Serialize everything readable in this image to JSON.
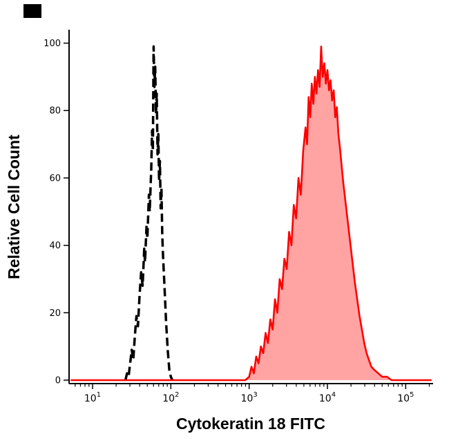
{
  "figure": {
    "background": "#ffffff",
    "corner_marker_color": "#000000"
  },
  "chart_data": {
    "type": "area",
    "title": "",
    "xlabel": "Cytokeratin 18 FITC",
    "ylabel": "Relative Cell Count",
    "x_scale": "log",
    "x_range_log10": [
      0.7,
      5.35
    ],
    "ylim": [
      0,
      104
    ],
    "y_ticks": [
      0,
      20,
      40,
      60,
      80,
      100
    ],
    "x_tick_base": "10",
    "x_tick_exponents": [
      1,
      2,
      3,
      4,
      5
    ],
    "grid": false,
    "legend": "none",
    "series": [
      {
        "name": "unstained-control-dashed-black",
        "style": "dashed",
        "color": "#000000",
        "fill": "none",
        "points_log10x_y": [
          [
            1.42,
            0
          ],
          [
            1.44,
            2
          ],
          [
            1.46,
            1
          ],
          [
            1.48,
            5
          ],
          [
            1.5,
            9
          ],
          [
            1.52,
            6
          ],
          [
            1.54,
            13
          ],
          [
            1.56,
            19
          ],
          [
            1.58,
            16
          ],
          [
            1.6,
            25
          ],
          [
            1.62,
            32
          ],
          [
            1.64,
            28
          ],
          [
            1.66,
            39
          ],
          [
            1.67,
            35
          ],
          [
            1.69,
            46
          ],
          [
            1.7,
            42
          ],
          [
            1.72,
            55
          ],
          [
            1.73,
            50
          ],
          [
            1.75,
            63
          ],
          [
            1.76,
            74
          ],
          [
            1.77,
            68
          ],
          [
            1.78,
            99
          ],
          [
            1.79,
            87
          ],
          [
            1.8,
            93
          ],
          [
            1.81,
            79
          ],
          [
            1.82,
            85
          ],
          [
            1.83,
            67
          ],
          [
            1.84,
            73
          ],
          [
            1.85,
            59
          ],
          [
            1.86,
            65
          ],
          [
            1.87,
            51
          ],
          [
            1.88,
            57
          ],
          [
            1.89,
            43
          ],
          [
            1.9,
            37
          ],
          [
            1.92,
            27
          ],
          [
            1.94,
            17
          ],
          [
            1.96,
            9
          ],
          [
            1.98,
            3
          ],
          [
            2.0,
            1
          ],
          [
            2.02,
            0
          ]
        ]
      },
      {
        "name": "cytokeratin-18-fitc-stained-red-filled",
        "style": "solid",
        "color": "#ff0000",
        "fill": "#ffa3a3",
        "points_log10x_y": [
          [
            0.72,
            0
          ],
          [
            1.5,
            0
          ],
          [
            2.3,
            0
          ],
          [
            2.8,
            0
          ],
          [
            2.95,
            0
          ],
          [
            3.0,
            1
          ],
          [
            3.03,
            4
          ],
          [
            3.06,
            2
          ],
          [
            3.09,
            7
          ],
          [
            3.12,
            5
          ],
          [
            3.15,
            10
          ],
          [
            3.18,
            8
          ],
          [
            3.21,
            14
          ],
          [
            3.24,
            11
          ],
          [
            3.27,
            18
          ],
          [
            3.3,
            15
          ],
          [
            3.33,
            24
          ],
          [
            3.36,
            20
          ],
          [
            3.39,
            30
          ],
          [
            3.42,
            27
          ],
          [
            3.45,
            36
          ],
          [
            3.48,
            33
          ],
          [
            3.51,
            44
          ],
          [
            3.54,
            40
          ],
          [
            3.57,
            52
          ],
          [
            3.6,
            48
          ],
          [
            3.63,
            60
          ],
          [
            3.66,
            55
          ],
          [
            3.69,
            68
          ],
          [
            3.72,
            75
          ],
          [
            3.74,
            70
          ],
          [
            3.76,
            84
          ],
          [
            3.78,
            78
          ],
          [
            3.8,
            88
          ],
          [
            3.82,
            82
          ],
          [
            3.84,
            90
          ],
          [
            3.86,
            85
          ],
          [
            3.88,
            92
          ],
          [
            3.9,
            87
          ],
          [
            3.92,
            99
          ],
          [
            3.94,
            90
          ],
          [
            3.96,
            94
          ],
          [
            3.98,
            88
          ],
          [
            4.0,
            92
          ],
          [
            4.02,
            86
          ],
          [
            4.04,
            89
          ],
          [
            4.06,
            83
          ],
          [
            4.08,
            86
          ],
          [
            4.1,
            78
          ],
          [
            4.12,
            81
          ],
          [
            4.14,
            73
          ],
          [
            4.16,
            69
          ],
          [
            4.18,
            64
          ],
          [
            4.2,
            59
          ],
          [
            4.23,
            53
          ],
          [
            4.26,
            47
          ],
          [
            4.29,
            41
          ],
          [
            4.32,
            35
          ],
          [
            4.35,
            29
          ],
          [
            4.38,
            24
          ],
          [
            4.41,
            19
          ],
          [
            4.44,
            15
          ],
          [
            4.47,
            11
          ],
          [
            4.5,
            8
          ],
          [
            4.53,
            6
          ],
          [
            4.56,
            4
          ],
          [
            4.6,
            3
          ],
          [
            4.65,
            2
          ],
          [
            4.7,
            1
          ],
          [
            4.76,
            1
          ],
          [
            4.82,
            0
          ],
          [
            4.9,
            0
          ],
          [
            5.1,
            0
          ],
          [
            5.33,
            0
          ]
        ]
      }
    ]
  }
}
